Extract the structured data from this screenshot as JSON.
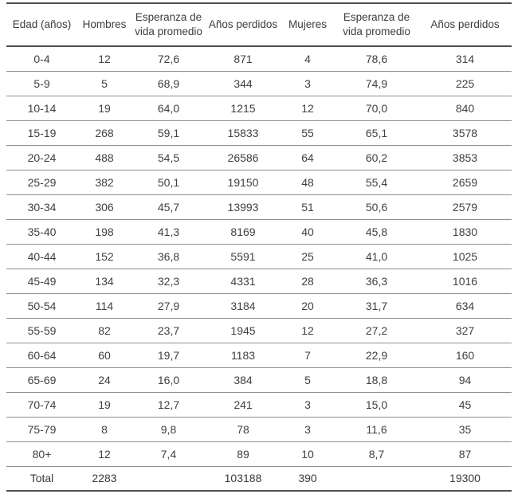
{
  "table": {
    "headers": [
      "Edad (años)",
      "Hombres",
      "Esperanza de vida promedio",
      "Años perdidos",
      "Mujeres",
      "Esperanza de vida promedio",
      "Años perdidos"
    ],
    "rows": [
      [
        "0-4",
        "12",
        "72,6",
        "871",
        "4",
        "78,6",
        "314"
      ],
      [
        "5-9",
        "5",
        "68,9",
        "344",
        "3",
        "74,9",
        "225"
      ],
      [
        "10-14",
        "19",
        "64,0",
        "1215",
        "12",
        "70,0",
        "840"
      ],
      [
        "15-19",
        "268",
        "59,1",
        "15833",
        "55",
        "65,1",
        "3578"
      ],
      [
        "20-24",
        "488",
        "54,5",
        "26586",
        "64",
        "60,2",
        "3853"
      ],
      [
        "25-29",
        "382",
        "50,1",
        "19150",
        "48",
        "55,4",
        "2659"
      ],
      [
        "30-34",
        "306",
        "45,7",
        "13993",
        "51",
        "50,6",
        "2579"
      ],
      [
        "35-40",
        "198",
        "41,3",
        "8169",
        "40",
        "45,8",
        "1830"
      ],
      [
        "40-44",
        "152",
        "36,8",
        "5591",
        "25",
        "41,0",
        "1025"
      ],
      [
        "45-49",
        "134",
        "32,3",
        "4331",
        "28",
        "36,3",
        "1016"
      ],
      [
        "50-54",
        "114",
        "27,9",
        "3184",
        "20",
        "31,7",
        "634"
      ],
      [
        "55-59",
        "82",
        "23,7",
        "1945",
        "12",
        "27,2",
        "327"
      ],
      [
        "60-64",
        "60",
        "19,7",
        "1183",
        "7",
        "22,9",
        "160"
      ],
      [
        "65-69",
        "24",
        "16,0",
        "384",
        "5",
        "18,8",
        "94"
      ],
      [
        "70-74",
        "19",
        "12,7",
        "241",
        "3",
        "15,0",
        "45"
      ],
      [
        "75-79",
        "8",
        "9,8",
        "78",
        "3",
        "11,6",
        "35"
      ],
      [
        "80+",
        "12",
        "7,4",
        "89",
        "10",
        "8,7",
        "87"
      ]
    ],
    "total": [
      "Total",
      "2283",
      "",
      "103188",
      "390",
      "",
      "19300"
    ]
  },
  "colors": {
    "text": "#3d3d3d",
    "rule_strong": "#4e4e4e",
    "rule_light": "#8f8f8f",
    "background": "#ffffff"
  }
}
